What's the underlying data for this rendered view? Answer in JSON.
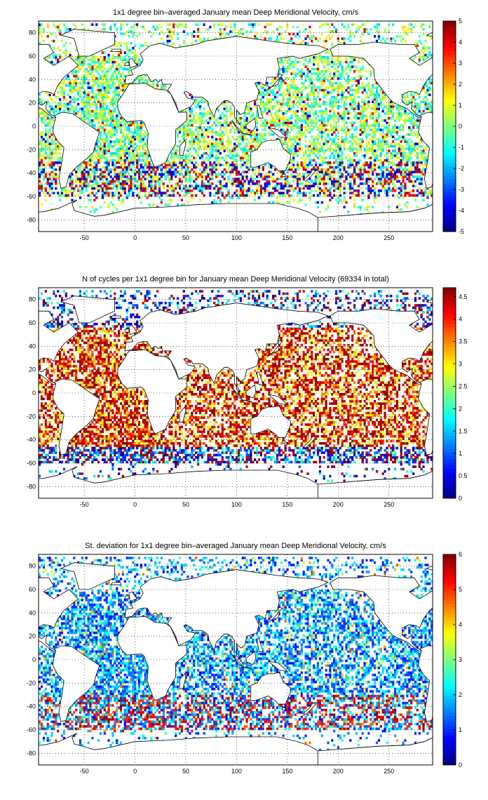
{
  "figure": {
    "x_range": [
      -95,
      293
    ],
    "y_range": [
      -90,
      90
    ],
    "panels": [
      {
        "title": "1x1 degree bin–averaged January mean Deep Meridional Velocity, cm/s",
        "variable": "mean deep meridional velocity",
        "unit": "cm/s",
        "colorbar": {
          "min": -5,
          "max": 5,
          "ticks": [
            "-5",
            "-4",
            "-3",
            "-2",
            "-1",
            "0",
            "1",
            "2",
            "3",
            "4",
            "5"
          ]
        },
        "x_ticks": [
          "-50",
          "0",
          "50",
          "100",
          "150",
          "200",
          "250"
        ],
        "y_ticks": [
          "80",
          "60",
          "40",
          "20",
          "0",
          "-20",
          "-40",
          "-60",
          "-80"
        ]
      },
      {
        "title": "N of cycles per 1x1 degree bin for January mean Deep Meridional Velocity (69334 in total)",
        "variable": "cycle count",
        "unit": "",
        "colorbar": {
          "min": 0,
          "max": 4.7,
          "ticks": [
            "0",
            "0.5",
            "1",
            "1.5",
            "2",
            "2.5",
            "3",
            "3.5",
            "4",
            "4.5"
          ]
        },
        "x_ticks": [
          "-50",
          "0",
          "50",
          "100",
          "150",
          "200",
          "250"
        ],
        "y_ticks": [
          "80",
          "60",
          "40",
          "20",
          "0",
          "-20",
          "-40",
          "-60",
          "-80"
        ]
      },
      {
        "title": "St. deviation for 1x1 degree bin–averaged January mean Deep Meridional Velocity, cm/s",
        "variable": "standard deviation of deep meridional velocity",
        "unit": "cm/s",
        "colorbar": {
          "min": 0,
          "max": 6,
          "ticks": [
            "0",
            "1",
            "2",
            "3",
            "4",
            "5",
            "6"
          ]
        },
        "x_ticks": [
          "-50",
          "0",
          "50",
          "100",
          "150",
          "200",
          "250"
        ],
        "y_ticks": [
          "80",
          "60",
          "40",
          "20",
          "0",
          "-20",
          "-40",
          "-60",
          "-80"
        ]
      }
    ],
    "colormap": "jet",
    "land_color": "#ffffff",
    "coast_color": "#000000"
  }
}
